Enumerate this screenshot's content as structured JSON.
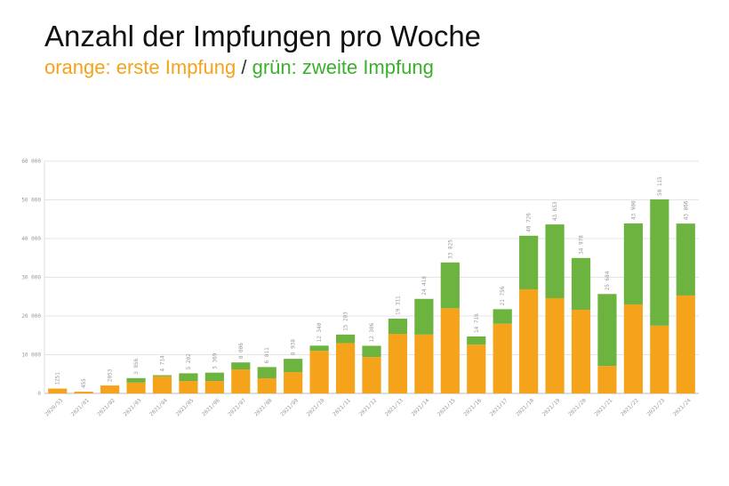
{
  "chart_data": {
    "type": "bar",
    "stacked": true,
    "title": "Anzahl der Impfungen pro Woche",
    "subtitle": {
      "orange": "orange: erste Impfung",
      "sep": " / ",
      "green": "grün: zweite Impfung"
    },
    "categories": [
      "2020/53",
      "2021/01",
      "2021/02",
      "2021/03",
      "2021/04",
      "2021/05",
      "2021/06",
      "2021/07",
      "2021/08",
      "2021/09",
      "2021/10",
      "2021/11",
      "2021/12",
      "2021/13",
      "2021/14",
      "2021/15",
      "2021/16",
      "2021/17",
      "2021/18",
      "2021/19",
      "2021/20",
      "2021/21",
      "2021/22",
      "2021/23",
      "2021/24"
    ],
    "totals": [
      1251,
      455,
      2053,
      3956,
      4714,
      5202,
      5369,
      8006,
      6811,
      8938,
      12340,
      15203,
      12306,
      19311,
      24418,
      33825,
      14716,
      21756,
      40726,
      43653,
      34978,
      25684,
      43900,
      50115,
      43866
    ],
    "total_labels": [
      "1251",
      "455",
      "2053",
      "3 956",
      "4 714",
      "5 202",
      "5 369",
      "8 006",
      "6 811",
      "8 938",
      "12 340",
      "15 203",
      "12 306",
      "19 311",
      "24 418",
      "33 825",
      "14 716",
      "21 756",
      "40 726",
      "43 653",
      "34 978",
      "25 684",
      "43 900",
      "50 115",
      "43 866"
    ],
    "series": [
      {
        "name": "erste Impfung",
        "color": "#f5a31a",
        "values": [
          1251,
          455,
          2053,
          2800,
          4400,
          3200,
          3200,
          6200,
          3900,
          5500,
          11000,
          13000,
          9400,
          15400,
          15200,
          22000,
          12600,
          18000,
          26900,
          24600,
          21600,
          7100,
          23000,
          17500,
          25300
        ]
      },
      {
        "name": "zweite Impfung",
        "color": "#6cb33f",
        "values": [
          0,
          0,
          0,
          1156,
          314,
          2002,
          2169,
          1806,
          2911,
          3438,
          1340,
          2203,
          2906,
          3911,
          9218,
          11825,
          2116,
          3756,
          13826,
          19053,
          13378,
          18584,
          20900,
          32615,
          18566
        ]
      }
    ],
    "ylim": [
      0,
      60000
    ],
    "yticks": [
      0,
      10000,
      20000,
      30000,
      40000,
      50000,
      60000
    ],
    "ytick_labels": [
      "0",
      "10 000",
      "20 000",
      "30 000",
      "40 000",
      "50 000",
      "60 000"
    ],
    "grid": true,
    "legend": "none"
  }
}
